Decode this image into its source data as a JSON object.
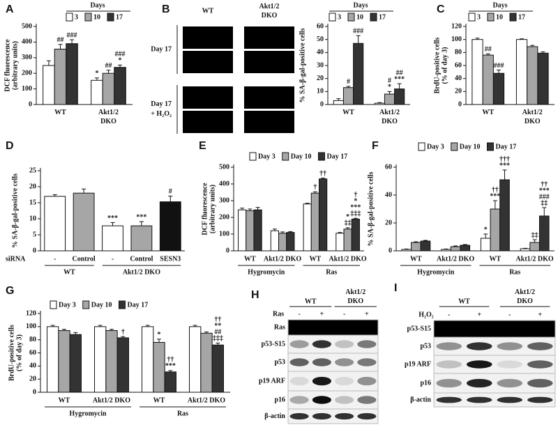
{
  "chart_data": [
    {
      "type": "bar",
      "panel": "A",
      "ylabel": [
        "DCF fluorescence",
        "(arbitrary units)"
      ],
      "legend_title": "Days",
      "categories": [
        "WT",
        "Akt1/2 DKO"
      ],
      "ylim": [
        0,
        500
      ],
      "yticks": [
        0,
        100,
        200,
        300,
        400,
        500
      ],
      "series": [
        {
          "name": "3",
          "color": "#ffffff",
          "values": [
            250,
            155
          ],
          "errors": [
            30,
            15
          ],
          "annotations": [
            null,
            [
              "*"
            ]
          ]
        },
        {
          "name": "10",
          "color": "#a6a6a6",
          "values": [
            355,
            200
          ],
          "errors": [
            30,
            20
          ],
          "annotations": [
            [
              "##"
            ],
            [
              "##"
            ]
          ]
        },
        {
          "name": "17",
          "color": "#333333",
          "values": [
            390,
            238
          ],
          "errors": [
            25,
            15
          ],
          "annotations": [
            [
              "###"
            ],
            [
              "*",
              "###"
            ]
          ]
        }
      ]
    },
    {
      "type": "image_grid",
      "panel": "B",
      "columns": [
        "WT",
        "Akt1/2 DKO"
      ],
      "rows": [
        "Day 17",
        "Day 17 + H₂O₂"
      ]
    },
    {
      "type": "bar",
      "ylabel": [
        "% SA-β-gal-positive cells"
      ],
      "legend_title": "Days",
      "categories": [
        "WT",
        "Akt1/2 DKO"
      ],
      "ylim": [
        0,
        60
      ],
      "yticks": [
        0,
        10,
        20,
        30,
        40,
        50,
        60
      ],
      "series": [
        {
          "name": "3",
          "color": "#ffffff",
          "values": [
            3,
            1
          ],
          "errors": [
            1.5,
            0.5
          ],
          "annotations": [
            null,
            null
          ]
        },
        {
          "name": "10",
          "color": "#a6a6a6",
          "values": [
            13,
            8
          ],
          "errors": [
            1,
            2
          ],
          "annotations": [
            [
              "#"
            ],
            [
              "*",
              "#"
            ]
          ]
        },
        {
          "name": "17",
          "color": "#333333",
          "values": [
            47,
            12
          ],
          "errors": [
            6,
            4
          ],
          "annotations": [
            [
              "###"
            ],
            [
              "***",
              "##"
            ]
          ]
        }
      ]
    },
    {
      "type": "bar",
      "panel": "C",
      "ylabel": [
        "BrdU-positive cells",
        "(% of day 3)"
      ],
      "legend_title": "Days",
      "categories": [
        "WT",
        "Akt1/2 DKO"
      ],
      "ylim": [
        0,
        120
      ],
      "yticks": [
        0,
        20,
        40,
        60,
        80,
        100,
        120
      ],
      "series": [
        {
          "name": "3",
          "color": "#ffffff",
          "values": [
            100,
            100
          ],
          "errors": [
            2,
            1
          ],
          "annotations": [
            null,
            null
          ]
        },
        {
          "name": "10",
          "color": "#a6a6a6",
          "values": [
            76,
            89
          ],
          "errors": [
            2,
            2
          ],
          "annotations": [
            [
              "##"
            ],
            null
          ]
        },
        {
          "name": "17",
          "color": "#333333",
          "values": [
            48,
            79
          ],
          "errors": [
            5,
            2
          ],
          "annotations": [
            [
              "###"
            ],
            null
          ]
        }
      ]
    },
    {
      "type": "bar",
      "panel": "D",
      "ylabel": [
        "% SA-β-gal-positive cells"
      ],
      "row_label": "siRNA",
      "categories": [
        "-",
        "Control",
        "-",
        "Control",
        "SESN3"
      ],
      "groups": [
        "WT",
        "Akt1/2 DKO"
      ],
      "ylim": [
        0,
        25
      ],
      "yticks": [
        0,
        5,
        10,
        15,
        20,
        25
      ],
      "values": [
        17,
        18,
        7.8,
        7.8,
        15.3
      ],
      "errors": [
        0.5,
        1.3,
        1,
        1.3,
        1.8
      ],
      "colors": [
        "#ffffff",
        "#a6a6a6",
        "#ffffff",
        "#a6a6a6",
        "#111111"
      ],
      "annotations": [
        null,
        null,
        [
          "***"
        ],
        [
          "***"
        ],
        [
          "#"
        ]
      ]
    },
    {
      "type": "bar",
      "panel": "E",
      "ylabel": [
        "DCF fluorescence",
        "(arbitrary units)"
      ],
      "categories": [
        "WT",
        "Akt1/2 DKO",
        "WT",
        "Akt1/2 DKO"
      ],
      "groups": [
        "Hygromycin",
        "Ras"
      ],
      "ylim": [
        0,
        500
      ],
      "yticks": [
        0,
        100,
        200,
        300,
        400,
        500
      ],
      "series": [
        {
          "name": "Day 3",
          "color": "#ffffff",
          "values": [
            245,
            120,
            280,
            105
          ],
          "errors": [
            10,
            10,
            5,
            5
          ],
          "annotations": [
            null,
            null,
            null,
            null
          ]
        },
        {
          "name": "Day 10",
          "color": "#a6a6a6",
          "values": [
            240,
            105,
            345,
            130
          ],
          "errors": [
            10,
            8,
            8,
            8
          ],
          "annotations": [
            null,
            null,
            [
              "†"
            ],
            [
              "‡‡",
              "*"
            ]
          ]
        },
        {
          "name": "Day 17",
          "color": "#333333",
          "values": [
            245,
            110,
            430,
            190
          ],
          "errors": [
            15,
            5,
            5,
            5
          ],
          "annotations": [
            null,
            null,
            [
              "††"
            ],
            [
              "‡‡‡",
              "***",
              "*",
              "†"
            ]
          ]
        }
      ]
    },
    {
      "type": "bar",
      "panel": "F",
      "ylabel": [
        "% SA-β-gal-positive cells"
      ],
      "categories": [
        "WT",
        "Akt1/2 DKO",
        "WT",
        "Akt1/2 DKO"
      ],
      "groups": [
        "Hygromycin",
        "Ras"
      ],
      "ylim": [
        0,
        60
      ],
      "yticks": [
        0,
        20,
        40,
        60
      ],
      "series": [
        {
          "name": "Day 3",
          "color": "#ffffff",
          "values": [
            1,
            1,
            9,
            1.5
          ],
          "errors": [
            0.3,
            0.3,
            3,
            0.3
          ],
          "annotations": [
            null,
            null,
            [
              "*"
            ],
            null
          ]
        },
        {
          "name": "Day 10",
          "color": "#a6a6a6",
          "values": [
            6,
            3,
            30,
            6
          ],
          "errors": [
            0.5,
            0.5,
            6,
            2
          ],
          "annotations": [
            null,
            null,
            [
              "***",
              "††"
            ],
            [
              "‡‡"
            ]
          ]
        },
        {
          "name": "Day 17",
          "color": "#333333",
          "values": [
            7,
            4,
            51,
            25
          ],
          "errors": [
            0.5,
            0.5,
            7,
            6
          ],
          "annotations": [
            null,
            null,
            [
              "***",
              "†††"
            ],
            [
              "‡‡",
              "###",
              "***",
              "††"
            ]
          ]
        }
      ]
    },
    {
      "type": "bar",
      "panel": "G",
      "ylabel": [
        "BrdU-positive cells",
        "(% of day 3)"
      ],
      "categories": [
        "WT",
        "Akt1/2 DKO",
        "WT",
        "Akt1/2 DKO"
      ],
      "groups": [
        "Hygromycin",
        "Ras"
      ],
      "ylim": [
        0,
        120
      ],
      "yticks": [
        0,
        20,
        40,
        60,
        80,
        100,
        120
      ],
      "series": [
        {
          "name": "Day 3",
          "color": "#ffffff",
          "values": [
            100,
            100,
            100,
            100
          ],
          "errors": [
            2,
            2,
            2,
            2
          ],
          "annotations": [
            null,
            null,
            null,
            null
          ]
        },
        {
          "name": "Day 10",
          "color": "#a6a6a6",
          "values": [
            94,
            94,
            76,
            90
          ],
          "errors": [
            2,
            2,
            5,
            2
          ],
          "annotations": [
            null,
            null,
            [
              "*"
            ],
            null
          ]
        },
        {
          "name": "Day 17",
          "color": "#333333",
          "values": [
            88,
            83,
            31,
            72
          ],
          "errors": [
            3,
            2,
            2,
            3
          ],
          "annotations": [
            null,
            [
              "†"
            ],
            [
              "***",
              "††"
            ],
            [
              "‡‡‡",
              "##",
              "**",
              "††"
            ]
          ]
        }
      ]
    },
    {
      "type": "blot",
      "panel": "H",
      "groups": [
        "WT",
        "Akt1/2 DKO"
      ],
      "treatment": "Ras",
      "signs": [
        "-",
        "+",
        "-",
        "+"
      ],
      "rows": [
        "Ras",
        "p53-S15",
        "p53",
        "p19 ARF",
        "p16",
        "β-actin"
      ]
    },
    {
      "type": "blot",
      "panel": "I",
      "groups": [
        "WT",
        "Akt1/2 DKO"
      ],
      "treatment": "H₂O₂",
      "signs": [
        "-",
        "+",
        "-",
        "+"
      ],
      "rows": [
        "p53-S15",
        "p53",
        "p19 ARF",
        "p16",
        "β-actin"
      ]
    }
  ]
}
